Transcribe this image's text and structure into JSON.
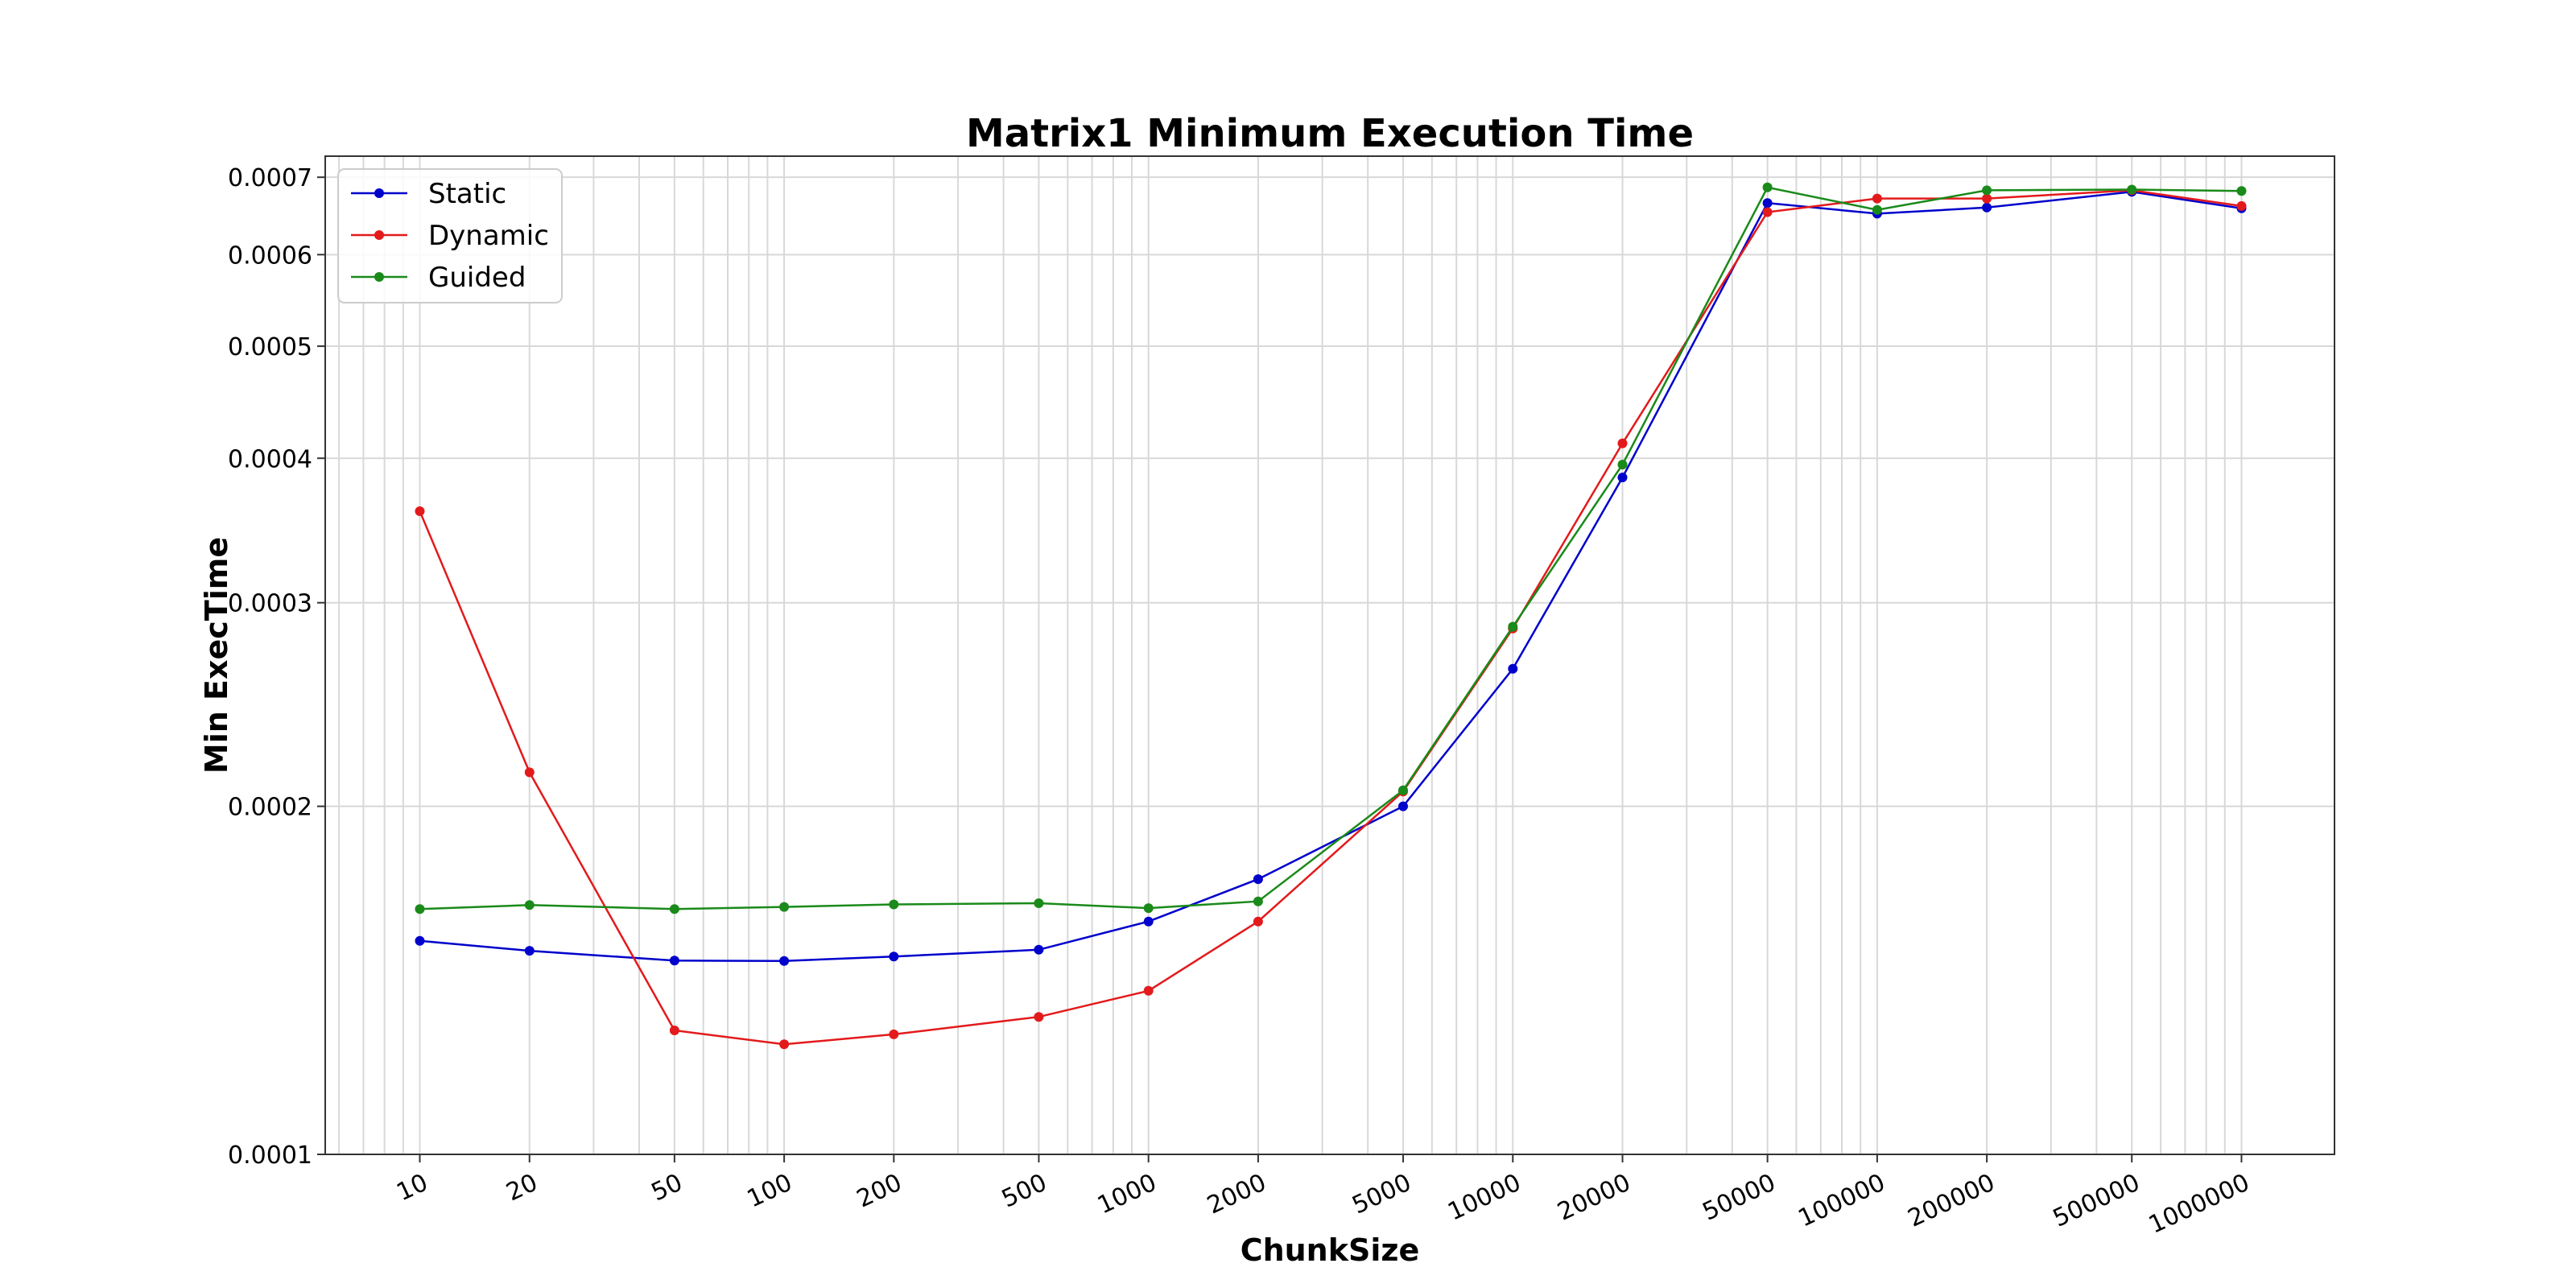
{
  "chart_data": {
    "type": "line",
    "title": "Matrix1 Minimum Execution Time",
    "xlabel": "ChunkSize",
    "ylabel": "Min ExecTime",
    "x_scale": "log",
    "y_scale": "log",
    "grid": "both",
    "legend_position": "top-left",
    "x_tick_labels": [
      "10",
      "20",
      "50",
      "100",
      "200",
      "500",
      "1000",
      "2000",
      "5000",
      "10000",
      "20000",
      "50000",
      "100000",
      "200000",
      "500000",
      "1000000"
    ],
    "y_tick_labels": [
      "0.0001",
      "0.0002",
      "0.0003",
      "0.0004",
      "0.0005",
      "0.0006",
      "0.0007"
    ],
    "x": [
      10,
      20,
      50,
      100,
      200,
      500,
      1000,
      2000,
      5000,
      10000,
      20000,
      50000,
      100000,
      200000,
      500000,
      1000000
    ],
    "xlim": [
      5.5,
      1800000
    ],
    "ylim": [
      0.0001,
      0.00073
    ],
    "series": [
      {
        "name": "Static",
        "color": "#0000cc",
        "values": [
          0.000153,
          0.00015,
          0.0001471,
          0.000147,
          0.0001483,
          0.0001503,
          0.000159,
          0.000173,
          0.0002,
          0.000263,
          0.000385,
          0.000665,
          0.000651,
          0.000659,
          0.00068,
          0.000658
        ]
      },
      {
        "name": "Dynamic",
        "color": "#e31a1c",
        "values": [
          0.00036,
          0.000214,
          0.000128,
          0.0001245,
          0.000127,
          0.0001315,
          0.0001385,
          0.000159,
          0.000206,
          0.000285,
          0.000412,
          0.000653,
          0.000671,
          0.000671,
          0.000682,
          0.000661
        ]
      },
      {
        "name": "Guided",
        "color": "#1a8a1a",
        "values": [
          0.000163,
          0.0001643,
          0.000163,
          0.0001637,
          0.0001645,
          0.0001649,
          0.0001633,
          0.0001655,
          0.0002065,
          0.000286,
          0.000395,
          0.000686,
          0.000656,
          0.000682,
          0.000683,
          0.000681
        ]
      }
    ]
  }
}
